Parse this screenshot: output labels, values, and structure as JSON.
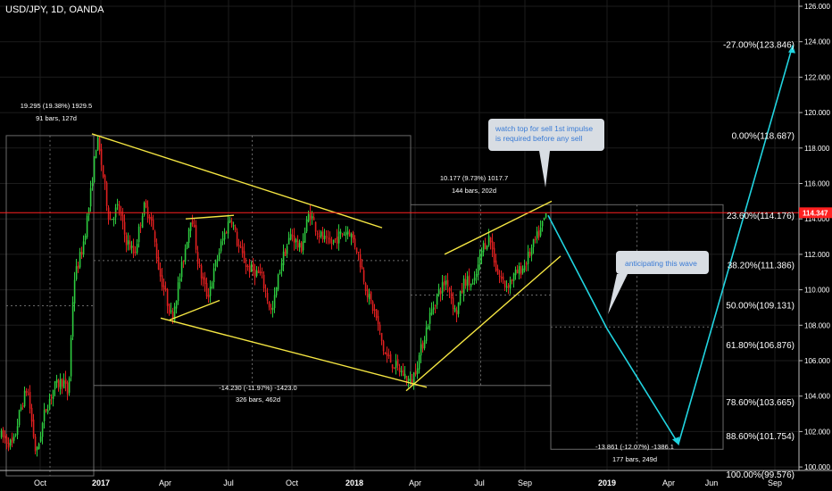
{
  "header": {
    "title": "USD/JPY, 1D, OANDA"
  },
  "colors": {
    "background": "#000000",
    "up": "#2ecc40",
    "down": "#e02020",
    "trendline": "#f5e642",
    "forecast": "#21d4e0",
    "price_line": "#ff2020",
    "box": "#6a6a6a",
    "callout_bg": "#d8dde3",
    "callout_text": "#3a7bd5"
  },
  "chart_data": {
    "type": "candlestick",
    "title": "USD/JPY, 1D, OANDA",
    "x_axis": {
      "labels": [
        "Oct",
        "2017",
        "Apr",
        "Jul",
        "Oct",
        "2018",
        "Apr",
        "Jul",
        "Sep",
        "2019",
        "Apr",
        "Jun",
        "Sep"
      ],
      "bold": [
        "2017",
        "2018",
        "2019"
      ]
    },
    "y_axis": {
      "side": "right",
      "range": [
        99.3,
        126.3
      ],
      "ticks": [
        "126.000",
        "124.000",
        "122.000",
        "120.000",
        "118.000",
        "116.000",
        "114.000",
        "112.000",
        "110.000",
        "108.000",
        "106.000",
        "104.000",
        "102.000",
        "100.000"
      ]
    },
    "current_price": "114.347",
    "fibonacci": [
      {
        "label": "-27.00%(123.846)",
        "value": 123.846
      },
      {
        "label": "0.00%(118.687)",
        "value": 118.687
      },
      {
        "label": "23.60%(114.176)",
        "value": 114.176
      },
      {
        "label": "38.20%(111.386)",
        "value": 111.386
      },
      {
        "label": "50.00%(109.131)",
        "value": 109.131
      },
      {
        "label": "61.80%(106.876)",
        "value": 106.876
      },
      {
        "label": "78.60%(103.665)",
        "value": 103.665
      },
      {
        "label": "88.60%(101.754)",
        "value": 101.754
      },
      {
        "label": "100.00%(99.576)",
        "value": 99.576
      }
    ],
    "measurements": [
      {
        "line1": "19.295 (19.38%) 1929.5",
        "line2": "91 bars, 127d"
      },
      {
        "line1": "-14.230 (-11.97%) -1423.0",
        "line2": "326 bars, 462d"
      },
      {
        "line1": "10.177 (9.73%) 1017.7",
        "line2": "144 bars, 202d"
      },
      {
        "line1": "-13.861 (-12.07%) -1386.1",
        "line2": "177 bars, 249d"
      }
    ],
    "callouts": [
      {
        "lines": [
          "watch top for sell 1st impulse",
          "is required before any sell"
        ]
      },
      {
        "lines": [
          "anticipating this wave"
        ]
      }
    ],
    "forecast_path": [
      {
        "date": "2018-10-01",
        "price": 114.2
      },
      {
        "date": "2019-01-01",
        "price": 107.8
      },
      {
        "date": "2019-04-20",
        "price": 101.3
      },
      {
        "date": "2019-10-01",
        "price": 123.8
      }
    ],
    "grid": true,
    "price_line_value": 114.347
  }
}
